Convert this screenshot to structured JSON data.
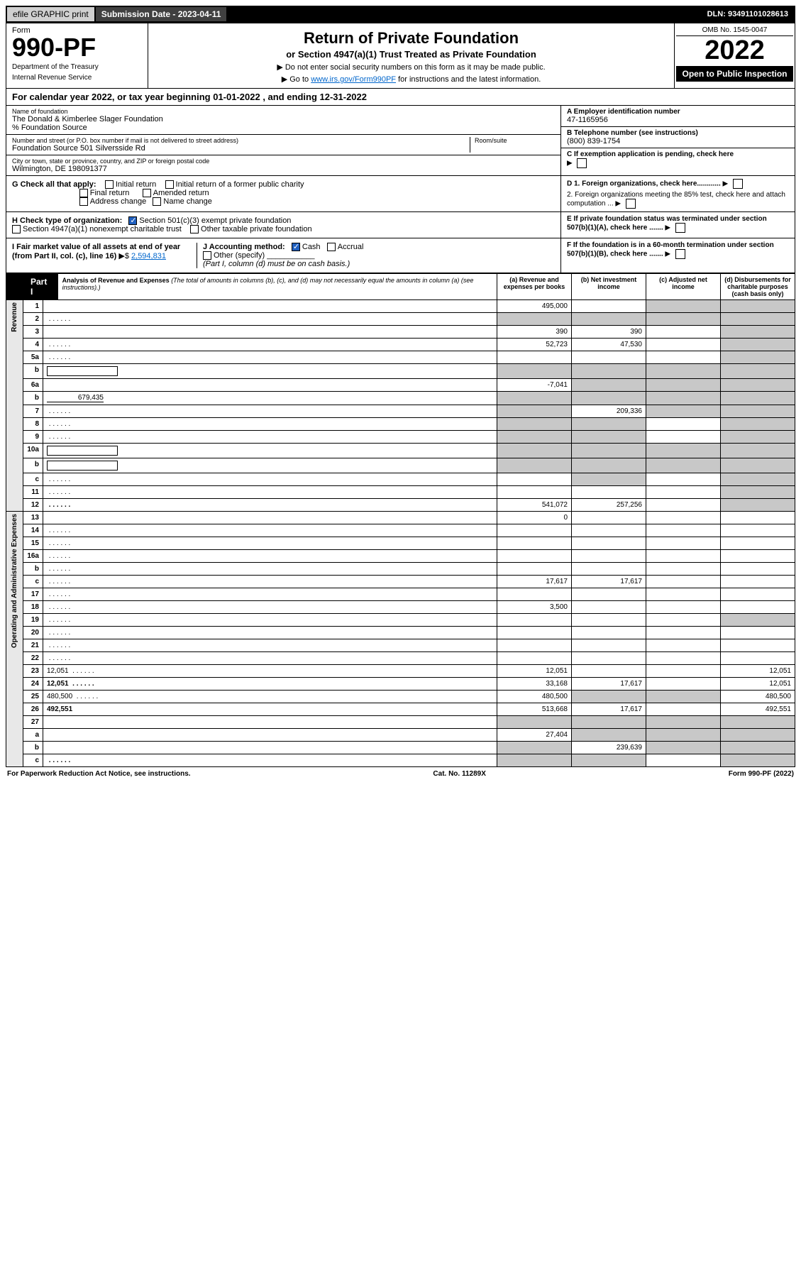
{
  "topbar": {
    "efile": "efile GRAPHIC print",
    "submission_label": "Submission Date - 2023-04-11",
    "dln": "DLN: 93491101028613"
  },
  "header": {
    "form_label": "Form",
    "form_number": "990-PF",
    "dept": "Department of the Treasury",
    "irs": "Internal Revenue Service",
    "title": "Return of Private Foundation",
    "subtitle": "or Section 4947(a)(1) Trust Treated as Private Foundation",
    "note1": "▶ Do not enter social security numbers on this form as it may be made public.",
    "note2_pre": "▶ Go to ",
    "note2_link": "www.irs.gov/Form990PF",
    "note2_post": " for instructions and the latest information.",
    "omb": "OMB No. 1545-0047",
    "year": "2022",
    "inspection": "Open to Public Inspection"
  },
  "calyear": "For calendar year 2022, or tax year beginning 01-01-2022               , and ending 12-31-2022",
  "entity": {
    "name_label": "Name of foundation",
    "name": "The Donald & Kimberlee Slager Foundation",
    "care_of": "% Foundation Source",
    "addr_label": "Number and street (or P.O. box number if mail is not delivered to street address)",
    "addr": "Foundation Source 501 Silversside Rd",
    "room_label": "Room/suite",
    "city_label": "City or town, state or province, country, and ZIP or foreign postal code",
    "city": "Wilmington, DE  198091377",
    "ein_label": "A Employer identification number",
    "ein": "47-1165956",
    "phone_label": "B Telephone number (see instructions)",
    "phone": "(800) 839-1754",
    "c_label": "C If exemption application is pending, check here",
    "d1": "D 1. Foreign organizations, check here............",
    "d2": "2. Foreign organizations meeting the 85% test, check here and attach computation ...",
    "e_label": "E If private foundation status was terminated under section 507(b)(1)(A), check here .......",
    "f_label": "F If the foundation is in a 60-month termination under section 507(b)(1)(B), check here ......."
  },
  "checks": {
    "g_label": "G Check all that apply:",
    "initial": "Initial return",
    "initial_former": "Initial return of a former public charity",
    "final": "Final return",
    "amended": "Amended return",
    "address": "Address change",
    "name": "Name change",
    "h_label": "H Check type of organization:",
    "h_501c3": "Section 501(c)(3) exempt private foundation",
    "h_4947": "Section 4947(a)(1) nonexempt charitable trust",
    "h_other": "Other taxable private foundation",
    "i_label": "I Fair market value of all assets at end of year (from Part II, col. (c), line 16)",
    "i_value": "2,594,831",
    "j_label": "J Accounting method:",
    "j_cash": "Cash",
    "j_accrual": "Accrual",
    "j_other": "Other (specify)",
    "j_note": "(Part I, column (d) must be on cash basis.)"
  },
  "part1": {
    "label": "Part I",
    "title": "Analysis of Revenue and Expenses",
    "title_note": "(The total of amounts in columns (b), (c), and (d) may not necessarily equal the amounts in column (a) (see instructions).)",
    "col_a": "(a) Revenue and expenses per books",
    "col_b": "(b) Net investment income",
    "col_c": "(c) Adjusted net income",
    "col_d": "(d) Disbursements for charitable purposes (cash basis only)"
  },
  "side_labels": {
    "revenue": "Revenue",
    "opex": "Operating and Administrative Expenses"
  },
  "lines": [
    {
      "n": "1",
      "d": "",
      "a": "495,000",
      "b": "",
      "c": "",
      "shade_b": false,
      "shade_c": true,
      "shade_d": true
    },
    {
      "n": "2",
      "d": "",
      "a": "",
      "b": "",
      "c": "",
      "shade_a": true,
      "shade_b": true,
      "shade_c": true,
      "shade_d": true,
      "dotted": true
    },
    {
      "n": "3",
      "d": "",
      "a": "390",
      "b": "390",
      "c": "",
      "shade_d": true
    },
    {
      "n": "4",
      "d": "",
      "a": "52,723",
      "b": "47,530",
      "c": "",
      "shade_d": true,
      "dotted": true
    },
    {
      "n": "5a",
      "d": "",
      "a": "",
      "b": "",
      "c": "",
      "shade_d": true,
      "dotted": true
    },
    {
      "n": "b",
      "d": "",
      "a": "",
      "b": "",
      "c": "",
      "shade_a": true,
      "shade_b": true,
      "shade_c": true,
      "shade_d": true,
      "inline_box": true
    },
    {
      "n": "6a",
      "d": "",
      "a": "-7,041",
      "b": "",
      "c": "",
      "shade_b": true,
      "shade_c": true,
      "shade_d": true
    },
    {
      "n": "b",
      "d": "",
      "a": "",
      "b": "",
      "c": "",
      "shade_a": true,
      "shade_b": true,
      "shade_c": true,
      "shade_d": true,
      "inline_val": "679,435"
    },
    {
      "n": "7",
      "d": "",
      "a": "",
      "b": "209,336",
      "c": "",
      "shade_a": true,
      "shade_c": true,
      "shade_d": true,
      "dotted": true
    },
    {
      "n": "8",
      "d": "",
      "a": "",
      "b": "",
      "c": "",
      "shade_a": true,
      "shade_b": true,
      "shade_d": true,
      "dotted": true
    },
    {
      "n": "9",
      "d": "",
      "a": "",
      "b": "",
      "c": "",
      "shade_a": true,
      "shade_b": true,
      "shade_d": true,
      "dotted": true
    },
    {
      "n": "10a",
      "d": "",
      "a": "",
      "b": "",
      "c": "",
      "shade_a": true,
      "shade_b": true,
      "shade_c": true,
      "shade_d": true,
      "inline_box": true
    },
    {
      "n": "b",
      "d": "",
      "a": "",
      "b": "",
      "c": "",
      "shade_a": true,
      "shade_b": true,
      "shade_c": true,
      "shade_d": true,
      "inline_box": true,
      "dotted": true
    },
    {
      "n": "c",
      "d": "",
      "a": "",
      "b": "",
      "c": "",
      "shade_b": true,
      "shade_d": true,
      "dotted": true
    },
    {
      "n": "11",
      "d": "",
      "a": "",
      "b": "",
      "c": "",
      "shade_d": true,
      "dotted": true
    },
    {
      "n": "12",
      "d": "",
      "a": "541,072",
      "b": "257,256",
      "c": "",
      "bold": true,
      "shade_d": true,
      "dotted": true
    },
    {
      "n": "13",
      "d": "",
      "a": "0",
      "b": "",
      "c": ""
    },
    {
      "n": "14",
      "d": "",
      "a": "",
      "b": "",
      "c": "",
      "dotted": true
    },
    {
      "n": "15",
      "d": "",
      "a": "",
      "b": "",
      "c": "",
      "dotted": true
    },
    {
      "n": "16a",
      "d": "",
      "a": "",
      "b": "",
      "c": "",
      "dotted": true
    },
    {
      "n": "b",
      "d": "",
      "a": "",
      "b": "",
      "c": "",
      "dotted": true
    },
    {
      "n": "c",
      "d": "",
      "a": "17,617",
      "b": "17,617",
      "c": "",
      "dotted": true
    },
    {
      "n": "17",
      "d": "",
      "a": "",
      "b": "",
      "c": "",
      "dotted": true
    },
    {
      "n": "18",
      "d": "",
      "a": "3,500",
      "b": "",
      "c": "",
      "dotted": true
    },
    {
      "n": "19",
      "d": "",
      "a": "",
      "b": "",
      "c": "",
      "shade_d": true,
      "dotted": true
    },
    {
      "n": "20",
      "d": "",
      "a": "",
      "b": "",
      "c": "",
      "dotted": true
    },
    {
      "n": "21",
      "d": "",
      "a": "",
      "b": "",
      "c": "",
      "dotted": true
    },
    {
      "n": "22",
      "d": "",
      "a": "",
      "b": "",
      "c": "",
      "dotted": true
    },
    {
      "n": "23",
      "d": "12,051",
      "a": "12,051",
      "b": "",
      "c": "",
      "dotted": true
    },
    {
      "n": "24",
      "d": "12,051",
      "a": "33,168",
      "b": "17,617",
      "c": "",
      "bold": true,
      "dotted": true
    },
    {
      "n": "25",
      "d": "480,500",
      "a": "480,500",
      "b": "",
      "c": "",
      "shade_b": true,
      "shade_c": true,
      "dotted": true
    },
    {
      "n": "26",
      "d": "492,551",
      "a": "513,668",
      "b": "17,617",
      "c": "",
      "bold": true
    },
    {
      "n": "27",
      "d": "",
      "a": "",
      "b": "",
      "c": "",
      "shade_a": true,
      "shade_b": true,
      "shade_c": true,
      "shade_d": true
    },
    {
      "n": "a",
      "d": "",
      "a": "27,404",
      "b": "",
      "c": "",
      "bold": true,
      "shade_b": true,
      "shade_c": true,
      "shade_d": true
    },
    {
      "n": "b",
      "d": "",
      "a": "",
      "b": "239,639",
      "c": "",
      "bold": true,
      "shade_a": true,
      "shade_c": true,
      "shade_d": true
    },
    {
      "n": "c",
      "d": "",
      "a": "",
      "b": "",
      "c": "",
      "bold": true,
      "shade_a": true,
      "shade_b": true,
      "shade_d": true,
      "dotted": true
    }
  ],
  "footer": {
    "left": "For Paperwork Reduction Act Notice, see instructions.",
    "center": "Cat. No. 11289X",
    "right": "Form 990-PF (2022)"
  }
}
